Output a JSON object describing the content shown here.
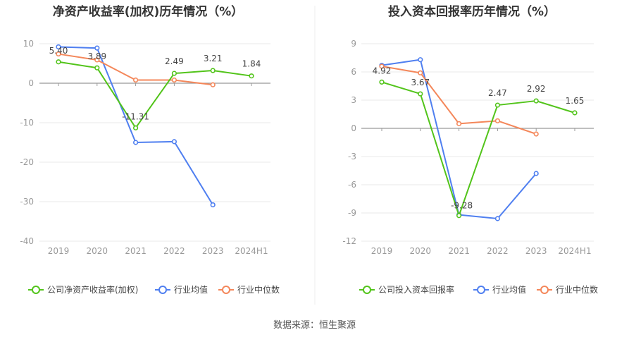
{
  "chart_data": [
    {
      "type": "line",
      "title": "净资产收益率(加权)历年情况（%）",
      "categories": [
        "2019",
        "2020",
        "2021",
        "2022",
        "2023",
        "2024H1"
      ],
      "ylim": [
        -40,
        10
      ],
      "yticks": [
        10,
        0,
        -10,
        -20,
        -30,
        -40
      ],
      "series": [
        {
          "name": "公司净资产收益率(加权)",
          "color": "#52c41a",
          "values": [
            5.4,
            3.89,
            -11.31,
            2.49,
            3.21,
            1.84
          ],
          "labels": [
            "5.40",
            "3.89",
            "-11.31",
            "2.49",
            "3.21",
            "1.84"
          ]
        },
        {
          "name": "行业均值",
          "color": "#4f7ff0",
          "values": [
            9.2,
            8.9,
            -15.0,
            -14.8,
            -30.8,
            null
          ]
        },
        {
          "name": "行业中位数",
          "color": "#f4875a",
          "values": [
            7.4,
            5.9,
            0.8,
            0.8,
            -0.4,
            null
          ]
        }
      ]
    },
    {
      "type": "line",
      "title": "投入资本回报率历年情况（%）",
      "categories": [
        "2019",
        "2020",
        "2021",
        "2022",
        "2023",
        "2024H1"
      ],
      "ylim": [
        -12,
        9
      ],
      "yticks": [
        9,
        6,
        3,
        0,
        -3,
        -6,
        -9,
        -12
      ],
      "series": [
        {
          "name": "公司投入资本回报率",
          "color": "#52c41a",
          "values": [
            4.92,
            3.67,
            -9.28,
            2.47,
            2.92,
            1.65
          ],
          "labels": [
            "4.92",
            "3.67",
            "-9.28",
            "2.47",
            "2.92",
            "1.65"
          ]
        },
        {
          "name": "行业均值",
          "color": "#4f7ff0",
          "values": [
            6.7,
            7.3,
            -9.2,
            -9.6,
            -4.8,
            null
          ]
        },
        {
          "name": "行业中位数",
          "color": "#f4875a",
          "values": [
            6.6,
            5.9,
            0.5,
            0.8,
            -0.6,
            null
          ]
        }
      ]
    }
  ],
  "footer": {
    "source": "数据来源：恒生聚源"
  }
}
